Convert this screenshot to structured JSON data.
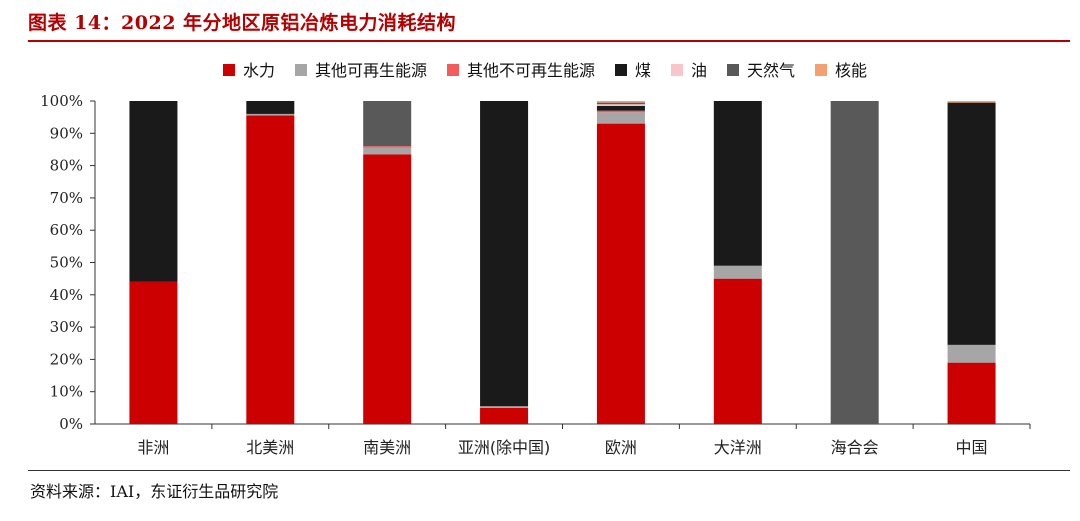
{
  "title": "图表 14：2022 年分地区原铝冶炼电力消耗结构",
  "source": "资料来源：IAI，东证衍生品研究院",
  "colors": {
    "title": "#b30000"
  },
  "chart_data": {
    "type": "bar",
    "stacked": true,
    "title": "",
    "xlabel": "",
    "ylabel": "",
    "ylim": [
      0,
      100
    ],
    "y_unit": "%",
    "y_ticks": [
      "0%",
      "10%",
      "20%",
      "30%",
      "40%",
      "50%",
      "60%",
      "70%",
      "80%",
      "90%",
      "100%"
    ],
    "legend_position": "top",
    "grid": false,
    "categories": [
      "非洲",
      "北美洲",
      "南美洲",
      "亚洲(除中国)",
      "欧洲",
      "大洋洲",
      "海合会",
      "中国"
    ],
    "series": [
      {
        "name": "水力",
        "color": "#cc0000",
        "values": [
          44,
          95.5,
          83.5,
          5,
          93,
          45,
          0,
          19
        ]
      },
      {
        "name": "其他可再生能源",
        "color": "#a6a6a6",
        "values": [
          0,
          0.5,
          2,
          0.5,
          3.5,
          4,
          0,
          5.5
        ]
      },
      {
        "name": "其他不可再生能源",
        "color": "#f25c5c",
        "values": [
          0,
          0,
          0.5,
          0,
          0.5,
          0,
          0,
          0
        ]
      },
      {
        "name": "煤",
        "color": "#1a1a1a",
        "values": [
          56,
          4,
          0,
          94.5,
          1.5,
          51,
          0,
          75
        ]
      },
      {
        "name": "油",
        "color": "#f7c6cc",
        "values": [
          0,
          0,
          0,
          0,
          0.5,
          0,
          0,
          0
        ]
      },
      {
        "name": "天然气",
        "color": "#595959",
        "values": [
          0,
          0,
          14,
          0,
          0.5,
          0,
          100,
          0
        ]
      },
      {
        "name": "核能",
        "color": "#f4a070",
        "values": [
          0,
          0,
          0,
          0,
          0.5,
          0,
          0,
          0.5
        ]
      }
    ]
  }
}
